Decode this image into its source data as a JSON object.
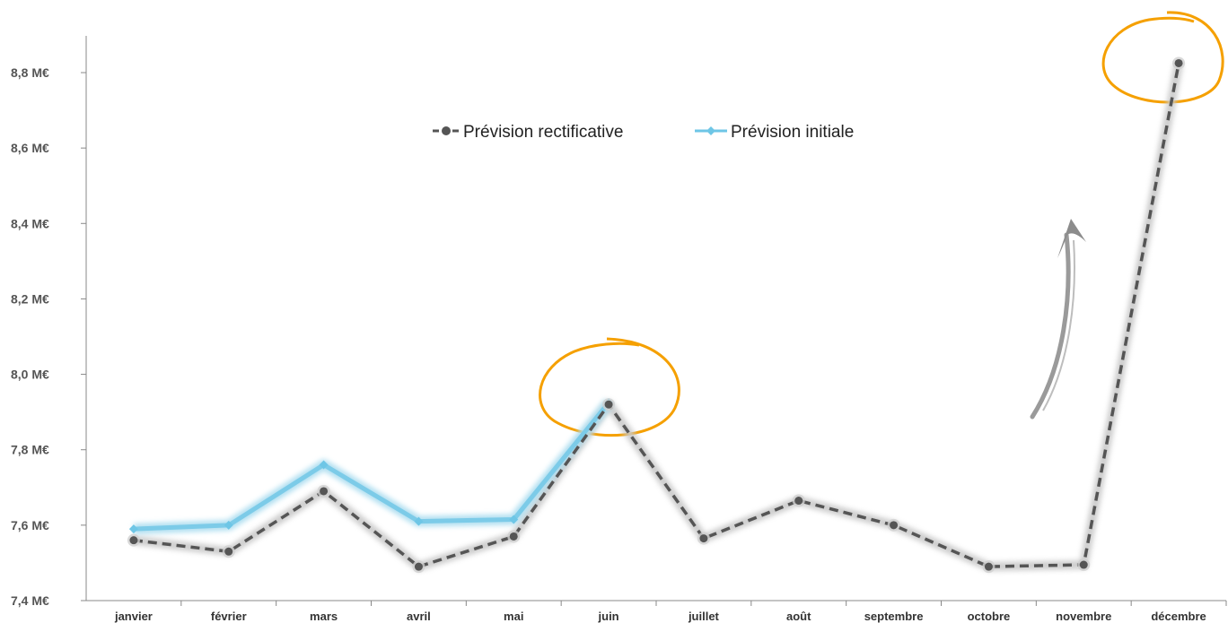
{
  "chart_data": {
    "type": "line",
    "categories": [
      "janvier",
      "février",
      "mars",
      "avril",
      "mai",
      "juin",
      "juillet",
      "août",
      "septembre",
      "octobre",
      "novembre",
      "décembre"
    ],
    "series": [
      {
        "name": "Prévision rectificative",
        "color": "#555555",
        "style": "dashed",
        "values": [
          7.56,
          7.53,
          7.69,
          7.49,
          7.57,
          7.92,
          7.565,
          7.665,
          7.6,
          7.49,
          7.495,
          8.825
        ]
      },
      {
        "name": "Prévision initiale",
        "color": "#6ec6e6",
        "style": "solid",
        "values": [
          7.59,
          7.6,
          7.76,
          7.61,
          7.615,
          7.925,
          null,
          null,
          null,
          null,
          null,
          null
        ]
      }
    ],
    "yticks": [
      "7,4 M€",
      "7,6 M€",
      "7,8 M€",
      "8,0 M€",
      "8,2 M€",
      "8,4 M€",
      "8,6 M€",
      "8,8 M€"
    ],
    "ylim": [
      7.4,
      8.8
    ],
    "title": "",
    "xlabel": "",
    "ylabel": "",
    "legend_position": "top-center",
    "grid": false,
    "annotations": {
      "highlight_circles": [
        "juin",
        "décembre"
      ],
      "circle_color": "#f5a000",
      "arrow_icon": "upward-curved-arrow-icon"
    }
  }
}
